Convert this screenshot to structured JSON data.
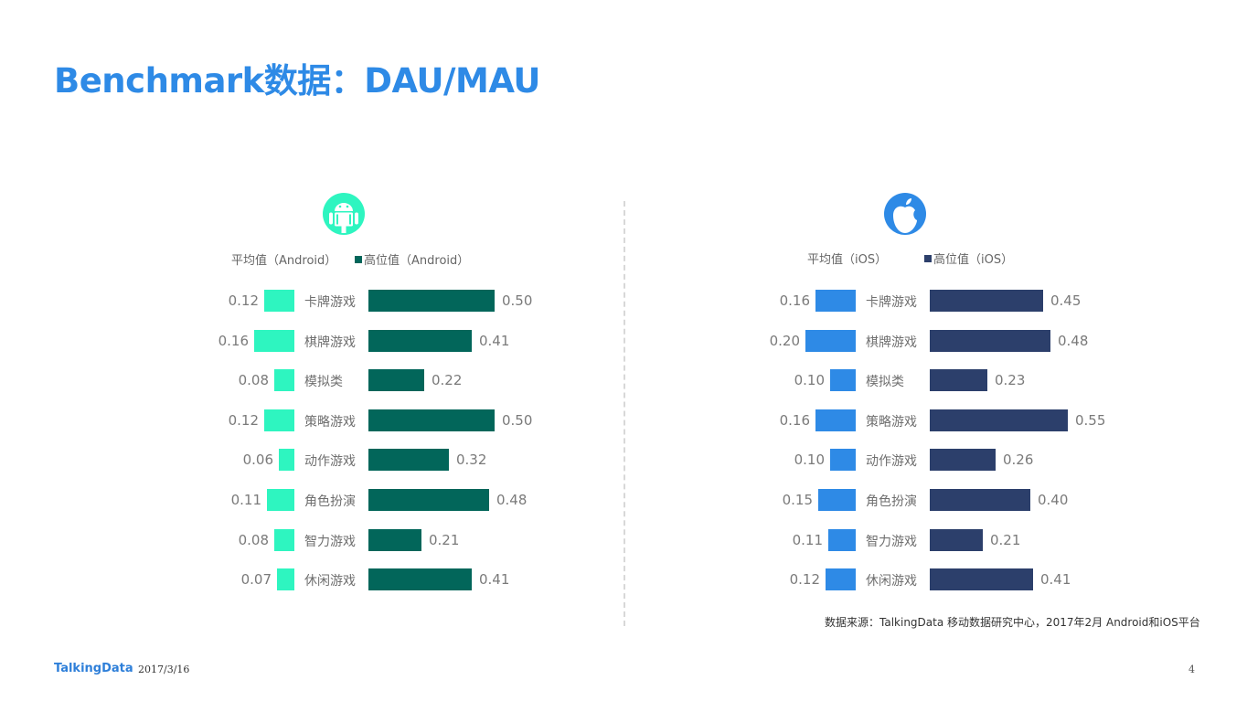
{
  "title": "Benchmark数据：DAU/MAU",
  "colors": {
    "title": "#2e8ae6",
    "android_avg": "#2ef5c0",
    "android_high": "#02665a",
    "ios_avg": "#2e8ae6",
    "ios_high": "#2c3f6b"
  },
  "android": {
    "icon": "android-icon",
    "legend_avg": "平均值（Android）",
    "legend_high": "高位值（Android）"
  },
  "ios": {
    "icon": "apple-icon",
    "legend_avg": "平均值（iOS）",
    "legend_high": "高位值（iOS）"
  },
  "chart_data": [
    {
      "type": "bar",
      "title": "Android",
      "orientation": "horizontal-diverging",
      "categories": [
        "卡牌游戏",
        "棋牌游戏",
        "模拟类",
        "策略游戏",
        "动作游戏",
        "角色扮演",
        "智力游戏",
        "休闲游戏"
      ],
      "series": [
        {
          "name": "平均值（Android）",
          "values": [
            0.12,
            0.16,
            0.08,
            0.12,
            0.06,
            0.11,
            0.08,
            0.07
          ],
          "color": "#2ef5c0"
        },
        {
          "name": "高位值（Android）",
          "values": [
            0.5,
            0.41,
            0.22,
            0.5,
            0.32,
            0.48,
            0.21,
            0.41
          ],
          "color": "#02665a"
        }
      ],
      "labels": {
        "avg": [
          "0.12",
          "0.16",
          "0.08",
          "0.12",
          "0.06",
          "0.11",
          "0.08",
          "0.07"
        ],
        "high": [
          "0.50",
          "0.41",
          "0.22",
          "0.50",
          "0.32",
          "0.48",
          "0.21",
          "0.41"
        ]
      },
      "legend_position": "top",
      "grid": false
    },
    {
      "type": "bar",
      "title": "iOS",
      "orientation": "horizontal-diverging",
      "categories": [
        "卡牌游戏",
        "棋牌游戏",
        "模拟类",
        "策略游戏",
        "动作游戏",
        "角色扮演",
        "智力游戏",
        "休闲游戏"
      ],
      "series": [
        {
          "name": "平均值（iOS）",
          "values": [
            0.16,
            0.2,
            0.1,
            0.16,
            0.1,
            0.15,
            0.11,
            0.12
          ],
          "color": "#2e8ae6"
        },
        {
          "name": "高位值（iOS）",
          "values": [
            0.45,
            0.48,
            0.23,
            0.55,
            0.26,
            0.4,
            0.21,
            0.41
          ],
          "color": "#2c3f6b"
        }
      ],
      "labels": {
        "avg": [
          "0.16",
          "0.20",
          "0.10",
          "0.16",
          "0.10",
          "0.15",
          "0.11",
          "0.12"
        ],
        "high": [
          "0.45",
          "0.48",
          "0.23",
          "0.55",
          "0.26",
          "0.40",
          "0.21",
          "0.41"
        ]
      },
      "legend_position": "top",
      "grid": false
    }
  ],
  "source": "数据来源：TalkingData 移动数据研究中心，2017年2月 Android和iOS平台",
  "footer": {
    "brand": "TalkingData",
    "date": "2017/3/16",
    "page": "4"
  }
}
